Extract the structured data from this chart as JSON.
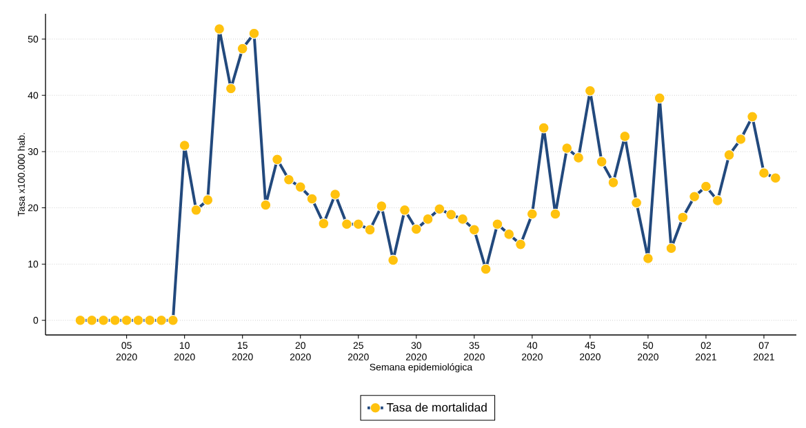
{
  "chart_data": {
    "type": "line",
    "xlabel": "Semana epidemiológica",
    "ylabel": "Tasa x100.000 hab.",
    "categories": [
      null,
      null,
      null,
      null,
      "05 2020",
      null,
      null,
      null,
      null,
      "10 2020",
      null,
      null,
      null,
      null,
      "15 2020",
      null,
      null,
      null,
      null,
      "20 2020",
      null,
      null,
      null,
      null,
      "25 2020",
      null,
      null,
      null,
      null,
      "30 2020",
      null,
      null,
      null,
      null,
      "35 2020",
      null,
      null,
      null,
      null,
      "40 2020",
      null,
      null,
      null,
      null,
      "45 2020",
      null,
      null,
      null,
      null,
      "50 2020",
      null,
      null,
      null,
      null,
      "02 2021",
      null,
      null,
      null,
      null,
      "07 2021",
      null
    ],
    "series": [
      {
        "name": "Tasa de mortalidad",
        "color": "#22497d",
        "colors": [
          "#ffc20e",
          "#ffc20e",
          "#ffc20e",
          "#ffc20e",
          "#ffc20e",
          "#ffc20e",
          "#ffc20e",
          "#ffc20e",
          "#ffc20e",
          "#ffc20e",
          "#ffc20e",
          "#ffc20e",
          "#ffc20e",
          "#ffc20e",
          "#ffc20e",
          "#ffc20e",
          "#ffc20e",
          "#ffc20e",
          "#ffc20e",
          "#ffc20e",
          "#ffc20e",
          "#ffc20e",
          "#ffc20e",
          "#ffc20e",
          "#ffc20e",
          "#ffc20e",
          "#ffc20e",
          "#ffc20e",
          "#ffc20e",
          "#ffc20e",
          "#ffc20e",
          "#ffc20e",
          "#ffc20e",
          "#ffc20e",
          "#ffc20e",
          "#ffc20e",
          "#ffc20e",
          "#ffc20e",
          "#ffc20e",
          "#ffc20e",
          "#ffc20e",
          "#ffc20e",
          "#ffc20e",
          "#ffc20e",
          "#ffc20e",
          "#ffc20e",
          "#ffc20e",
          "#ffc20e",
          "#ffc20e",
          "#ffc20e",
          "#ffc20e",
          "#ffc20e",
          "#ffc20e",
          "#ffc20e",
          "#ffc20e",
          "#ffc20e",
          "#ffc20e",
          "#ffc20e",
          "#ffc20e",
          "#ffc20e",
          "#ffc20e"
        ],
        "values": [
          0,
          0,
          0,
          0,
          0,
          0,
          0,
          0,
          0,
          31.1,
          19.6,
          21.4,
          51.8,
          41.2,
          48.3,
          51.0,
          20.5,
          28.6,
          25.0,
          23.7,
          21.6,
          17.2,
          22.4,
          17.1,
          17.1,
          16.1,
          20.3,
          10.7,
          19.6,
          16.2,
          18.0,
          19.8,
          18.8,
          18.0,
          16.1,
          9.1,
          17.1,
          15.3,
          13.5,
          18.9,
          34.2,
          18.9,
          30.6,
          28.9,
          40.8,
          28.2,
          24.5,
          32.7,
          20.9,
          11.0,
          39.5,
          12.8,
          18.3,
          22.0,
          23.8,
          21.3,
          29.4,
          32.2,
          36.2,
          26.2,
          25.3
        ]
      }
    ],
    "ylim": [
      -2.6,
      54.5
    ],
    "yticks": [
      0,
      10,
      20,
      30,
      40,
      50
    ],
    "grid": "y",
    "legend": "bottom",
    "marker": "circle",
    "line_style": "solid"
  }
}
